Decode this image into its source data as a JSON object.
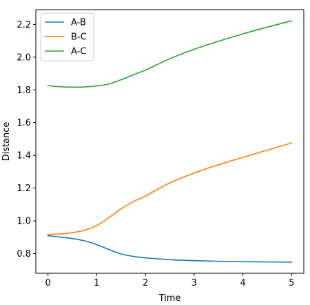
{
  "chart_data": {
    "type": "line",
    "title": "",
    "xlabel": "Time",
    "ylabel": "Distance",
    "xlim": [
      -0.25,
      5.25
    ],
    "ylim": [
      0.68,
      2.29
    ],
    "xticks": [
      0,
      1,
      2,
      3,
      4,
      5
    ],
    "yticks": [
      0.8,
      1.0,
      1.2,
      1.4,
      1.6,
      1.8,
      2.0,
      2.2
    ],
    "xtick_labels": [
      "0",
      "1",
      "2",
      "3",
      "4",
      "5"
    ],
    "ytick_labels": [
      "0.8",
      "1.0",
      "1.2",
      "1.4",
      "1.6",
      "1.8",
      "2.0",
      "2.2"
    ],
    "grid": false,
    "legend_position": "top-left",
    "x": [
      0,
      0.25,
      0.5,
      0.75,
      1.0,
      1.25,
      1.5,
      1.75,
      2.0,
      2.5,
      3.0,
      3.5,
      4.0,
      4.5,
      5.0
    ],
    "series": [
      {
        "name": "A-B",
        "color": "#1f77b4",
        "values": [
          0.909,
          0.901,
          0.892,
          0.878,
          0.855,
          0.825,
          0.798,
          0.783,
          0.774,
          0.763,
          0.757,
          0.753,
          0.751,
          0.749,
          0.748
        ]
      },
      {
        "name": "B-C",
        "color": "#ff7f0e",
        "values": [
          0.917,
          0.92,
          0.928,
          0.943,
          0.972,
          1.02,
          1.074,
          1.117,
          1.152,
          1.232,
          1.292,
          1.343,
          1.388,
          1.432,
          1.476
        ]
      },
      {
        "name": "A-C",
        "color": "#2ca02c",
        "values": [
          1.826,
          1.819,
          1.817,
          1.818,
          1.824,
          1.836,
          1.862,
          1.892,
          1.921,
          1.99,
          2.048,
          2.097,
          2.142,
          2.183,
          2.222
        ]
      }
    ]
  }
}
